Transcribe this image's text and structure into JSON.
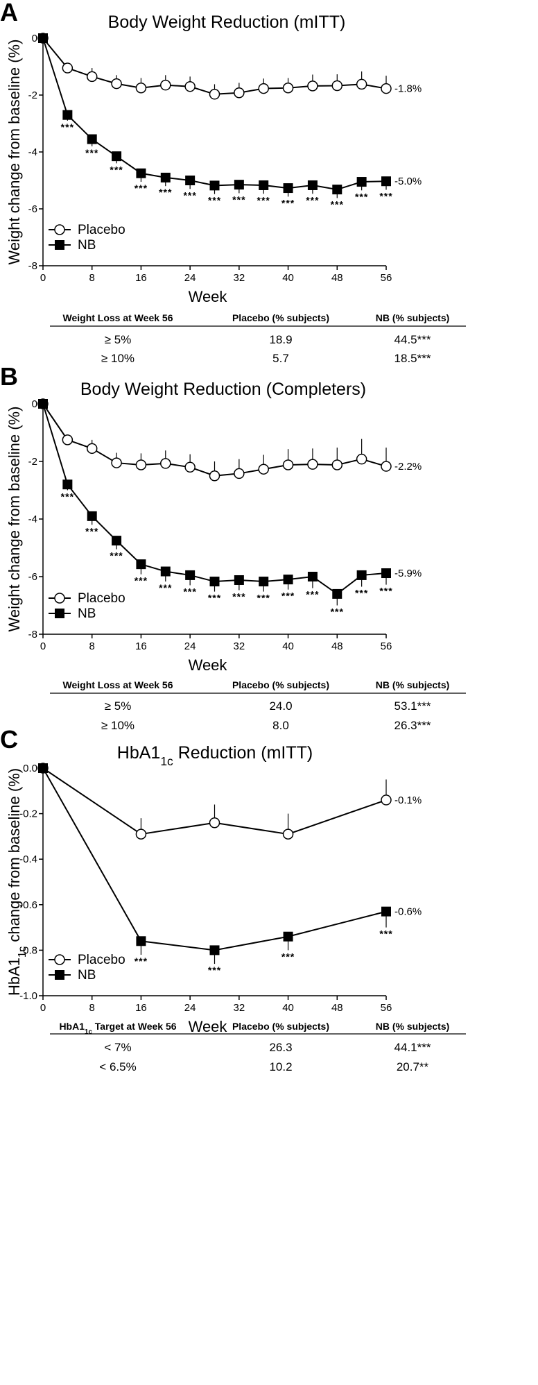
{
  "chart_data": [
    {
      "type": "line",
      "panel": "A",
      "title": "Body Weight Reduction (mITT)",
      "xlabel": "Week",
      "ylabel": "Weight change from baseline (%)",
      "xlim": [
        0,
        56
      ],
      "ylim": [
        -8,
        0
      ],
      "xticks": [
        0,
        8,
        16,
        24,
        32,
        40,
        48,
        56
      ],
      "yticks": [
        0,
        -2,
        -4,
        -6,
        -8
      ],
      "ytick_labels": [
        "0",
        "-2",
        "-4",
        "-6",
        "-8"
      ],
      "x": [
        0,
        4,
        8,
        12,
        16,
        20,
        24,
        28,
        32,
        36,
        40,
        44,
        48,
        52,
        56
      ],
      "series": [
        {
          "name": "Placebo",
          "marker": "circle",
          "values": [
            0,
            -1.05,
            -1.35,
            -1.6,
            -1.75,
            -1.65,
            -1.7,
            -1.97,
            -1.92,
            -1.77,
            -1.75,
            -1.68,
            -1.67,
            -1.62,
            -1.77
          ],
          "error": [
            0,
            0.05,
            0.3,
            0.3,
            0.35,
            0.35,
            0.35,
            0.35,
            0.35,
            0.35,
            0.35,
            0.4,
            0.4,
            0.45,
            0.45
          ],
          "end_label": "-1.8%"
        },
        {
          "name": "NB",
          "marker": "square",
          "values": [
            0,
            -2.7,
            -3.55,
            -4.15,
            -4.75,
            -4.9,
            -5.0,
            -5.18,
            -5.15,
            -5.17,
            -5.27,
            -5.17,
            -5.32,
            -5.05,
            -5.03
          ],
          "error": [
            0,
            0.2,
            0.25,
            0.25,
            0.3,
            0.3,
            0.3,
            0.3,
            0.3,
            0.3,
            0.3,
            0.3,
            0.3,
            0.3,
            0.3
          ],
          "end_label": "-5.0%",
          "significance": [
            "",
            "***",
            "***",
            "***",
            "***",
            "***",
            "***",
            "***",
            "***",
            "***",
            "***",
            "***",
            "***",
            "***",
            "***"
          ]
        }
      ],
      "legend": "bottom-left",
      "table": {
        "headers": [
          "Weight Loss at Week 56",
          "Placebo (% subjects)",
          "NB (% subjects)"
        ],
        "rows": [
          [
            "≥ 5%",
            "18.9",
            "44.5***"
          ],
          [
            "≥ 10%",
            "5.7",
            "18.5***"
          ]
        ]
      }
    },
    {
      "type": "line",
      "panel": "B",
      "title": "Body Weight Reduction (Completers)",
      "xlabel": "Week",
      "ylabel": "Weight change from baseline (%)",
      "xlim": [
        0,
        56
      ],
      "ylim": [
        -8,
        0
      ],
      "xticks": [
        0,
        8,
        16,
        24,
        32,
        40,
        48,
        56
      ],
      "yticks": [
        0,
        -2,
        -4,
        -6,
        -8
      ],
      "ytick_labels": [
        "0",
        "-2",
        "-4",
        "-6",
        "-8"
      ],
      "x": [
        0,
        4,
        8,
        12,
        16,
        20,
        24,
        28,
        32,
        36,
        40,
        44,
        48,
        52,
        56
      ],
      "series": [
        {
          "name": "Placebo",
          "marker": "circle",
          "values": [
            0,
            -1.25,
            -1.55,
            -2.05,
            -2.12,
            -2.07,
            -2.2,
            -2.5,
            -2.42,
            -2.27,
            -2.12,
            -2.1,
            -2.12,
            -1.92,
            -2.17
          ],
          "error": [
            0,
            0.05,
            0.3,
            0.35,
            0.4,
            0.45,
            0.45,
            0.5,
            0.5,
            0.5,
            0.55,
            0.55,
            0.6,
            0.7,
            0.65
          ],
          "end_label": "-2.2%"
        },
        {
          "name": "NB",
          "marker": "square",
          "values": [
            0,
            -2.8,
            -3.9,
            -4.75,
            -5.57,
            -5.82,
            -5.95,
            -6.17,
            -6.12,
            -6.17,
            -6.1,
            -6.0,
            -6.6,
            -5.95,
            -5.88
          ],
          "error": [
            0,
            0.2,
            0.3,
            0.3,
            0.35,
            0.35,
            0.35,
            0.35,
            0.35,
            0.35,
            0.35,
            0.4,
            0.4,
            0.4,
            0.4
          ],
          "end_label": "-5.9%",
          "significance": [
            "",
            "***",
            "***",
            "***",
            "***",
            "***",
            "***",
            "***",
            "***",
            "***",
            "***",
            "***",
            "***",
            "***",
            "***"
          ]
        }
      ],
      "legend": "bottom-left",
      "table": {
        "headers": [
          "Weight Loss at Week 56",
          "Placebo (% subjects)",
          "NB (% subjects)"
        ],
        "rows": [
          [
            "≥ 5%",
            "24.0",
            "53.1***"
          ],
          [
            "≥ 10%",
            "8.0",
            "26.3***"
          ]
        ]
      }
    },
    {
      "type": "line",
      "panel": "C",
      "title": "HbA1c Reduction (mITT)",
      "xlabel": "Week",
      "ylabel": "HbA1c change from baseline (%)",
      "xlim": [
        0,
        56
      ],
      "ylim": [
        -1.0,
        0
      ],
      "xticks": [
        0,
        8,
        16,
        24,
        32,
        40,
        48,
        56
      ],
      "yticks": [
        0,
        -0.2,
        -0.4,
        -0.6,
        -0.8,
        -1.0
      ],
      "ytick_labels": [
        "0.0",
        "-0.2",
        "-0.4",
        "-0.6",
        "-0.8",
        "-1.0"
      ],
      "x": [
        0,
        16,
        28,
        40,
        56
      ],
      "series": [
        {
          "name": "Placebo",
          "marker": "circle",
          "values": [
            0,
            -0.29,
            -0.24,
            -0.29,
            -0.14
          ],
          "error": [
            0,
            0.07,
            0.08,
            0.09,
            0.09
          ],
          "end_label": "-0.1%"
        },
        {
          "name": "NB",
          "marker": "square",
          "values": [
            0,
            -0.76,
            -0.8,
            -0.74,
            -0.63
          ],
          "error": [
            0,
            0.06,
            0.06,
            0.06,
            0.07
          ],
          "end_label": "-0.6%",
          "significance": [
            "",
            "***",
            "***",
            "***",
            "***"
          ]
        }
      ],
      "legend": "bottom-left",
      "table": {
        "headers": [
          "HbA1c Target at Week 56",
          "Placebo (% subjects)",
          "NB (% subjects)"
        ],
        "rows": [
          [
            "< 7%",
            "26.3",
            "44.1***"
          ],
          [
            "< 6.5%",
            "10.2",
            "20.7**"
          ]
        ]
      }
    }
  ]
}
